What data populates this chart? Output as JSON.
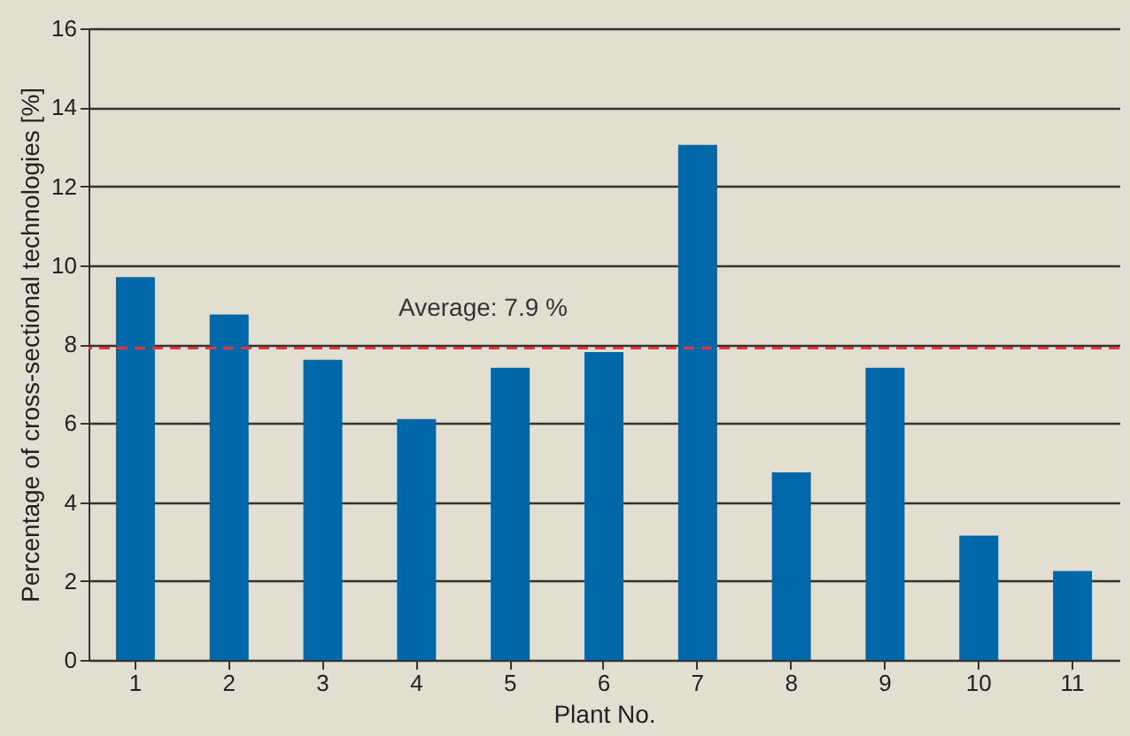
{
  "chart_data": {
    "type": "bar",
    "xlabel": "Plant No.",
    "ylabel": "Percentage of cross-sectional technologies [%]",
    "categories": [
      "1",
      "2",
      "3",
      "4",
      "5",
      "6",
      "7",
      "8",
      "9",
      "10",
      "11"
    ],
    "values": [
      9.7,
      8.75,
      7.6,
      6.1,
      7.4,
      7.8,
      13.05,
      4.75,
      7.4,
      3.15,
      2.25
    ],
    "color": "#0068a9",
    "ylim": [
      0,
      16
    ],
    "yticks": [
      0,
      2,
      4,
      6,
      8,
      10,
      12,
      14,
      16
    ],
    "grid": "y",
    "ref_lines": [
      {
        "axis": "y",
        "value": 7.9,
        "label": "Average: 7.9 %",
        "color": "#e8323c",
        "line_style": "dashed"
      }
    ]
  }
}
